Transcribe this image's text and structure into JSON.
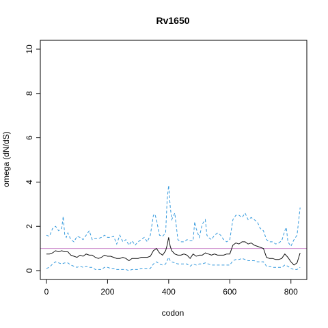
{
  "chart_data": {
    "type": "line",
    "title": "Rv1650",
    "xlabel": "codon",
    "ylabel": "omega (dN/dS)",
    "xlim": [
      -20,
      852
    ],
    "ylim": [
      -0.4,
      10.4
    ],
    "xticks": [
      0,
      200,
      400,
      600,
      800
    ],
    "yticks": [
      0,
      2,
      4,
      6,
      8,
      10
    ],
    "grid": false,
    "reference_line": {
      "y": 1,
      "color": "#cc88cc"
    },
    "series": [
      {
        "style": "solid",
        "color": "#111111",
        "x": [
          0,
          10,
          20,
          30,
          40,
          50,
          60,
          70,
          80,
          90,
          100,
          110,
          120,
          130,
          140,
          150,
          160,
          170,
          180,
          190,
          200,
          210,
          220,
          230,
          240,
          250,
          260,
          270,
          280,
          290,
          300,
          310,
          320,
          330,
          340,
          350,
          360,
          370,
          380,
          390,
          395,
          400,
          405,
          410,
          420,
          430,
          440,
          450,
          460,
          470,
          480,
          490,
          500,
          510,
          520,
          530,
          540,
          550,
          560,
          570,
          580,
          590,
          600,
          610,
          620,
          630,
          640,
          650,
          660,
          670,
          680,
          690,
          700,
          710,
          720,
          730,
          740,
          750,
          760,
          770,
          780,
          790,
          800,
          810,
          820,
          830
        ],
        "y": [
          0.75,
          0.75,
          0.8,
          0.9,
          0.85,
          0.9,
          0.85,
          0.85,
          0.7,
          0.65,
          0.6,
          0.7,
          0.65,
          0.75,
          0.7,
          0.7,
          0.6,
          0.55,
          0.6,
          0.7,
          0.65,
          0.65,
          0.6,
          0.55,
          0.55,
          0.6,
          0.55,
          0.45,
          0.55,
          0.55,
          0.55,
          0.6,
          0.6,
          0.6,
          0.65,
          0.9,
          1.0,
          0.8,
          0.7,
          0.9,
          1.15,
          1.5,
          1.1,
          0.9,
          0.75,
          0.7,
          0.7,
          0.75,
          0.7,
          0.55,
          0.75,
          0.65,
          0.7,
          0.7,
          0.8,
          0.75,
          0.7,
          0.75,
          0.7,
          0.7,
          0.7,
          0.75,
          0.75,
          1.15,
          1.25,
          1.2,
          1.3,
          1.3,
          1.2,
          1.25,
          1.15,
          1.1,
          1.05,
          1.0,
          0.6,
          0.55,
          0.55,
          0.5,
          0.5,
          0.55,
          0.75,
          0.6,
          0.4,
          0.25,
          0.35,
          0.8
        ]
      },
      {
        "style": "dashed",
        "color": "#3399dd",
        "x": [
          0,
          10,
          20,
          30,
          40,
          50,
          55,
          60,
          65,
          70,
          80,
          90,
          100,
          110,
          120,
          130,
          140,
          150,
          160,
          170,
          180,
          190,
          200,
          210,
          220,
          230,
          240,
          250,
          260,
          270,
          280,
          290,
          300,
          310,
          320,
          330,
          340,
          350,
          355,
          360,
          370,
          380,
          390,
          395,
          400,
          405,
          410,
          420,
          430,
          440,
          450,
          460,
          470,
          480,
          485,
          490,
          500,
          510,
          520,
          525,
          530,
          540,
          550,
          560,
          570,
          580,
          590,
          600,
          610,
          620,
          630,
          640,
          650,
          660,
          670,
          680,
          690,
          700,
          710,
          720,
          730,
          740,
          750,
          760,
          770,
          780,
          785,
          790,
          800,
          810,
          820,
          830
        ],
        "y": [
          1.6,
          1.55,
          1.9,
          2.0,
          1.8,
          1.9,
          2.45,
          1.6,
          1.5,
          1.7,
          1.4,
          1.3,
          1.55,
          1.5,
          1.4,
          1.6,
          1.8,
          1.4,
          1.45,
          1.45,
          1.5,
          1.6,
          1.5,
          1.5,
          1.55,
          1.2,
          1.6,
          1.3,
          1.4,
          1.15,
          1.35,
          1.15,
          1.3,
          1.4,
          1.5,
          1.3,
          1.6,
          2.5,
          2.55,
          2.3,
          1.6,
          1.55,
          1.7,
          3.2,
          3.85,
          2.9,
          2.3,
          2.6,
          1.4,
          1.3,
          1.3,
          1.4,
          1.35,
          1.35,
          2.2,
          1.9,
          1.5,
          2.1,
          2.3,
          1.6,
          1.5,
          1.4,
          1.6,
          1.7,
          1.6,
          1.4,
          1.3,
          1.4,
          2.3,
          2.5,
          2.5,
          2.4,
          2.6,
          2.3,
          2.4,
          2.3,
          2.2,
          1.9,
          1.8,
          1.4,
          1.3,
          1.3,
          1.2,
          1.25,
          1.35,
          1.8,
          1.95,
          1.3,
          1.1,
          1.4,
          1.6,
          2.85
        ]
      },
      {
        "style": "dashed",
        "color": "#3399dd",
        "x": [
          0,
          10,
          20,
          30,
          40,
          50,
          60,
          70,
          80,
          90,
          100,
          110,
          120,
          130,
          140,
          150,
          160,
          170,
          180,
          190,
          200,
          210,
          220,
          230,
          240,
          250,
          260,
          270,
          280,
          290,
          300,
          310,
          320,
          330,
          340,
          350,
          360,
          370,
          380,
          390,
          395,
          400,
          405,
          410,
          420,
          430,
          440,
          450,
          460,
          470,
          480,
          490,
          500,
          510,
          520,
          530,
          540,
          550,
          560,
          570,
          580,
          590,
          600,
          610,
          620,
          630,
          640,
          650,
          660,
          670,
          680,
          690,
          700,
          710,
          720,
          730,
          740,
          750,
          760,
          770,
          780,
          790,
          800,
          810,
          820,
          830
        ],
        "y": [
          0.1,
          0.15,
          0.3,
          0.4,
          0.35,
          0.3,
          0.35,
          0.35,
          0.25,
          0.2,
          0.15,
          0.2,
          0.15,
          0.2,
          0.15,
          0.15,
          0.05,
          0.05,
          0.05,
          0.15,
          0.15,
          0.1,
          0.1,
          0.05,
          0.05,
          0.05,
          0.05,
          0.0,
          0.05,
          0.05,
          0.05,
          0.1,
          0.1,
          0.1,
          0.1,
          0.3,
          0.4,
          0.3,
          0.25,
          0.3,
          0.45,
          0.6,
          0.45,
          0.4,
          0.35,
          0.3,
          0.3,
          0.3,
          0.3,
          0.2,
          0.3,
          0.25,
          0.3,
          0.3,
          0.35,
          0.3,
          0.25,
          0.25,
          0.25,
          0.25,
          0.25,
          0.25,
          0.25,
          0.45,
          0.5,
          0.5,
          0.55,
          0.5,
          0.45,
          0.45,
          0.45,
          0.4,
          0.4,
          0.4,
          0.2,
          0.2,
          0.15,
          0.15,
          0.15,
          0.15,
          0.25,
          0.2,
          0.1,
          0.05,
          0.05,
          0.15
        ]
      }
    ]
  }
}
